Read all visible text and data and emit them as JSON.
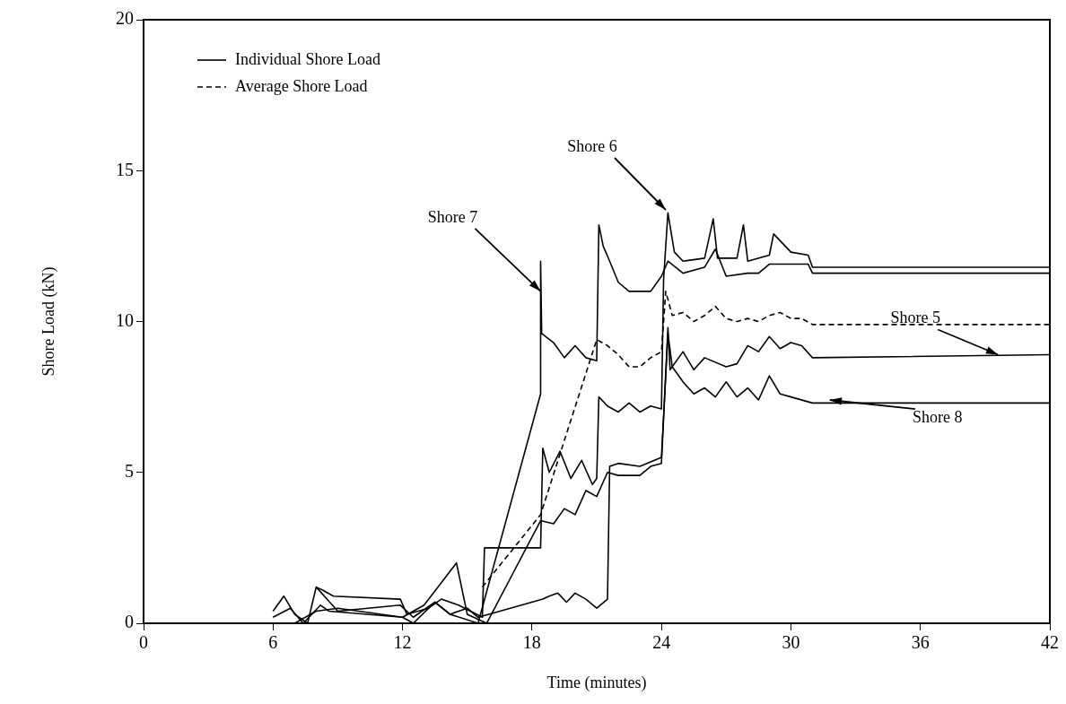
{
  "chart_data": {
    "type": "line",
    "xlabel": "Time (minutes)",
    "ylabel": "Shore Load (kN)",
    "xlim": [
      0,
      42
    ],
    "xticks": [
      0,
      6,
      12,
      18,
      24,
      30,
      36,
      42
    ],
    "ylim": [
      0,
      20
    ],
    "yticks": [
      0,
      5,
      10,
      15,
      20
    ],
    "legend": "top left",
    "marker": "none",
    "series": [
      {
        "name": "Individual Shore Load",
        "color": "#000000",
        "line_style": "solid",
        "x": [
          6.0,
          6.5,
          7.0,
          7.6,
          8.0,
          8.3,
          8.8,
          11.9,
          12.2,
          13.2,
          13.8,
          14.6,
          15.7,
          15.8,
          18.4,
          18.5,
          18.8,
          19.3,
          19.8,
          20.3,
          20.8,
          21.0,
          21.1,
          21.5,
          22.0,
          22.5,
          23.0,
          23.5,
          24.0,
          24.1,
          24.3,
          24.6,
          25.0,
          26.0,
          26.4,
          26.6,
          27.5,
          27.8,
          28.0,
          29.0,
          29.2,
          30.0,
          30.8,
          31.0,
          42
        ],
        "values": [
          0.4,
          0.9,
          0.3,
          0.0,
          1.2,
          1.1,
          0.9,
          0.8,
          0.3,
          0.5,
          0.8,
          0.6,
          0.2,
          2.5,
          2.5,
          5.8,
          5.0,
          5.7,
          4.8,
          5.4,
          4.6,
          4.8,
          7.5,
          7.2,
          7.0,
          7.3,
          7.0,
          7.2,
          7.1,
          11.4,
          13.6,
          12.3,
          12.0,
          12.1,
          13.4,
          12.1,
          12.1,
          13.2,
          12.0,
          12.2,
          12.9,
          12.3,
          12.2,
          11.8,
          11.8
        ]
      },
      {
        "color": "#000000",
        "line_style": "solid",
        "x": [
          6.0,
          6.8,
          7.4,
          8.2,
          8.6,
          12.0,
          12.5,
          13.5,
          14.2,
          15.5,
          18.4,
          18.4,
          18.45,
          19.0,
          19.5,
          20.0,
          20.5,
          21.0,
          21.1,
          21.3,
          21.6,
          22.0,
          22.5,
          23.5,
          24.0,
          24.3,
          25.0,
          26.0,
          26.5,
          27.0,
          28.0,
          28.5,
          29.0,
          30.0,
          30.8,
          31.0,
          42
        ],
        "values": [
          0.2,
          0.5,
          0.0,
          0.6,
          0.4,
          0.2,
          0.0,
          0.7,
          0.3,
          0.0,
          7.6,
          12.0,
          9.6,
          9.3,
          8.8,
          9.2,
          8.8,
          8.7,
          13.2,
          12.5,
          12.0,
          11.3,
          11.0,
          11.0,
          11.5,
          12.0,
          11.6,
          11.8,
          12.4,
          11.5,
          11.6,
          11.6,
          11.9,
          11.9,
          11.9,
          11.6,
          11.6
        ]
      },
      {
        "color": "#000000",
        "line_style": "solid",
        "x": [
          7.0,
          8.0,
          9.0,
          12.0,
          13.0,
          14.5,
          15.0,
          15.9,
          18.4,
          19.0,
          19.5,
          20.0,
          20.5,
          21.0,
          21.5,
          22.0,
          23.0,
          23.5,
          24.0,
          24.3,
          24.4,
          25.0,
          25.5,
          26.0,
          27.0,
          27.5,
          28.0,
          28.5,
          29.0,
          29.5,
          30.0,
          30.5,
          31.0,
          42
        ],
        "values": [
          0.0,
          0.4,
          0.5,
          0.2,
          0.6,
          2.0,
          0.3,
          0.0,
          3.4,
          3.3,
          3.8,
          3.6,
          4.4,
          4.2,
          5.0,
          4.9,
          4.9,
          5.2,
          5.3,
          9.8,
          8.4,
          9.0,
          8.4,
          8.8,
          8.5,
          8.6,
          9.2,
          9.0,
          9.5,
          9.1,
          9.3,
          9.2,
          8.8,
          8.9
        ]
      },
      {
        "color": "#000000",
        "line_style": "solid",
        "x": [
          8.0,
          8.5,
          9.0,
          11.9,
          12.5,
          13.5,
          14.2,
          15.0,
          15.5,
          16.0,
          18.5,
          18.8,
          19.2,
          19.6,
          20.0,
          20.5,
          21.0,
          21.5,
          21.6,
          22.0,
          23.0,
          24.0,
          24.3,
          24.5,
          25.0,
          25.5,
          26.0,
          26.5,
          27.0,
          27.5,
          28.0,
          28.5,
          29.0,
          29.5,
          30.0,
          31.0,
          42
        ],
        "values": [
          1.2,
          0.8,
          0.4,
          0.6,
          0.2,
          0.7,
          0.3,
          0.5,
          0.2,
          0.3,
          0.8,
          0.9,
          1.0,
          0.7,
          1.0,
          0.8,
          0.5,
          0.8,
          5.2,
          5.3,
          5.2,
          5.5,
          9.6,
          8.5,
          8.0,
          7.6,
          7.8,
          7.5,
          8.0,
          7.5,
          7.8,
          7.4,
          8.2,
          7.6,
          7.5,
          7.3,
          7.3
        ]
      },
      {
        "name": "Average Shore Load",
        "color": "#000000",
        "line_style": "dashed",
        "x": [
          15.7,
          18.4,
          21.0,
          21.5,
          22.0,
          22.5,
          23.0,
          23.5,
          24.0,
          24.2,
          24.5,
          25.0,
          25.5,
          26.0,
          26.5,
          27.0,
          27.5,
          28.0,
          28.5,
          29.0,
          29.5,
          30.0,
          30.5,
          31.0,
          42
        ],
        "values": [
          1.2,
          3.6,
          9.4,
          9.2,
          8.9,
          8.5,
          8.5,
          8.8,
          9.0,
          11.0,
          10.2,
          10.3,
          10.0,
          10.2,
          10.5,
          10.1,
          10.0,
          10.1,
          10.0,
          10.2,
          10.3,
          10.1,
          10.1,
          9.9,
          9.9
        ]
      }
    ],
    "annotations": [
      {
        "text": "Shore 7",
        "x": 18.4,
        "y": 11.0
      },
      {
        "text": "Shore 6",
        "x": 24.2,
        "y": 13.7
      },
      {
        "text": "Shore 5",
        "x": 39.6,
        "y": 8.9
      },
      {
        "text": "Shore 8",
        "x": 31.8,
        "y": 7.4
      }
    ]
  }
}
